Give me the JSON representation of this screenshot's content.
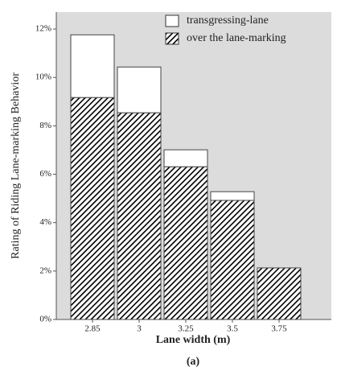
{
  "chart_data": {
    "type": "stacked-bar",
    "y_label": "Rating of Riding Lane-marking Behavior",
    "x_label": "Lane width (m)",
    "caption": "(a)",
    "categories": [
      "2.85",
      "3",
      "3.25",
      "3.5",
      "3.75"
    ],
    "series": [
      {
        "name": "over the lane-marking",
        "color": "#000000",
        "pattern": "hatch",
        "values": [
          9.17,
          8.54,
          6.31,
          4.92,
          2.13
        ]
      },
      {
        "name": "transgressing-lane",
        "color": "#ffffff",
        "values": [
          2.59,
          1.89,
          0.7,
          0.36,
          0
        ]
      }
    ],
    "ylim": [
      0,
      12.7
    ],
    "yticks": [
      {
        "value": 0,
        "label": "0%"
      },
      {
        "value": 2,
        "label": "2%"
      },
      {
        "value": 4,
        "label": "4%"
      },
      {
        "value": 6,
        "label": "6%"
      },
      {
        "value": 8,
        "label": "8%"
      },
      {
        "value": 10,
        "label": "10%"
      },
      {
        "value": 12,
        "label": "12%"
      }
    ],
    "grid": false,
    "legend_position": "top-right",
    "plot_background": "#dcdcdc"
  }
}
